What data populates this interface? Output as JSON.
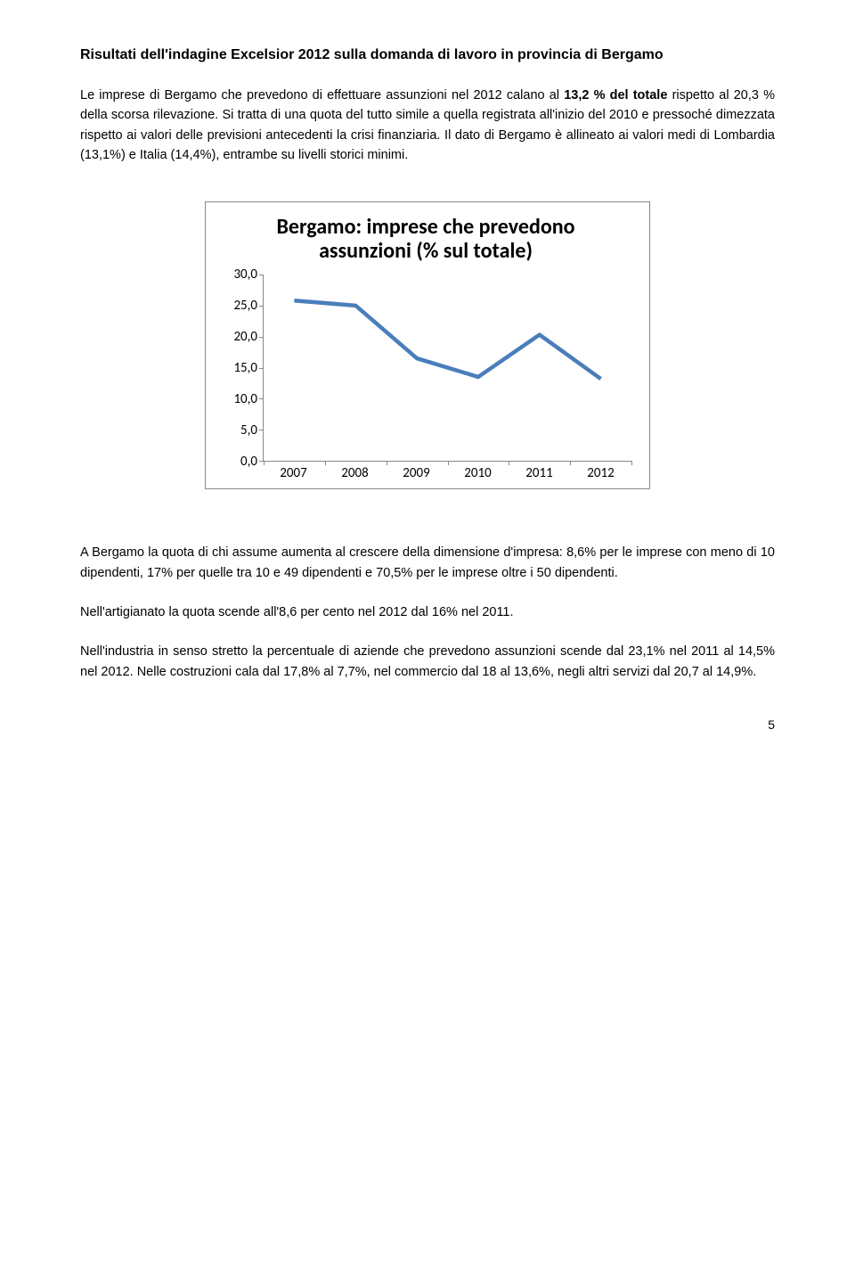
{
  "title": "Risultati dell'indagine Excelsior  2012 sulla domanda di lavoro in provincia di Bergamo",
  "p1": {
    "pre": "Le imprese di Bergamo che prevedono di effettuare assunzioni nel 2012 calano al ",
    "bold": "13,2 % del totale",
    "post": " rispetto al 20,3 % della scorsa rilevazione. Si tratta di una quota del tutto simile a quella registrata all'inizio del 2010 e pressoché dimezzata rispetto ai valori delle previsioni antecedenti la crisi finanziaria. Il dato di Bergamo è allineato ai valori medi di Lombardia (13,1%) e Italia (14,4%), entrambe su livelli storici minimi."
  },
  "chart": {
    "type": "line",
    "title_line1": "Bergamo: imprese che prevedono",
    "title_line2": "assunzioni (% sul totale)",
    "x_labels": [
      "2007",
      "2008",
      "2009",
      "2010",
      "2011",
      "2012"
    ],
    "y_ticks": [
      "0,0",
      "5,0",
      "10,0",
      "15,0",
      "20,0",
      "25,0",
      "30,0"
    ],
    "ylim": [
      0,
      30
    ],
    "values": [
      25.8,
      25.0,
      16.5,
      13.5,
      20.3,
      13.2
    ],
    "line_color": "#4a7ebb",
    "line_width": 4.5,
    "axis_color": "#888888",
    "background_color": "#ffffff",
    "title_fontsize": 24,
    "label_fontsize": 15
  },
  "p2": "A Bergamo la quota di chi assume aumenta al crescere della dimensione d'impresa: 8,6% per le imprese con meno di 10 dipendenti, 17% per quelle tra 10 e 49 dipendenti e 70,5% per le imprese oltre i 50 dipendenti.",
  "p3": "Nell'artigianato la quota scende all'8,6 per cento nel 2012 dal 16% nel 2011.",
  "p4": " Nell'industria in senso stretto la percentuale di aziende che prevedono assunzioni scende dal 23,1% nel 2011  al 14,5% nel 2012. Nelle costruzioni cala dal 17,8% al 7,7%, nel commercio dal 18 al 13,6%, negli altri servizi dal 20,7 al 14,9%.",
  "page_number": "5"
}
